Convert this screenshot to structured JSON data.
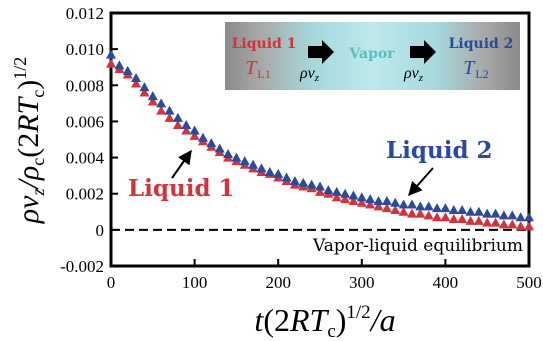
{
  "chart_data": {
    "type": "scatter",
    "xlim": [
      0,
      500
    ],
    "ylim": [
      -0.002,
      0.012
    ],
    "x_ticks": [
      "0",
      "100",
      "200",
      "300",
      "400",
      "500"
    ],
    "y_ticks": [
      "-0.002",
      "0",
      "0.002",
      "0.004",
      "0.006",
      "0.008",
      "0.010",
      "0.012"
    ],
    "x_tick_values": [
      0,
      100,
      200,
      300,
      400,
      500
    ],
    "y_tick_values": [
      -0.002,
      0,
      0.002,
      0.004,
      0.006,
      0.008,
      0.01,
      0.012
    ],
    "reference_line": {
      "y": 0,
      "style": "dashed",
      "label": "Vapor-liquid equilibrium"
    },
    "series": [
      {
        "name": "Liquid 1",
        "marker": "triangle",
        "color": "#d0343c",
        "x": [
          0,
          10,
          20,
          30,
          40,
          50,
          60,
          70,
          80,
          90,
          100,
          110,
          120,
          130,
          140,
          150,
          160,
          170,
          180,
          190,
          200,
          210,
          220,
          230,
          240,
          250,
          260,
          270,
          280,
          290,
          300,
          310,
          320,
          330,
          340,
          350,
          360,
          370,
          380,
          390,
          400,
          410,
          420,
          430,
          440,
          450,
          460,
          470,
          480,
          490,
          500
        ],
        "y": [
          0.0092,
          0.0089,
          0.0086,
          0.0081,
          0.0076,
          0.0071,
          0.0066,
          0.0062,
          0.0058,
          0.0055,
          0.0052,
          0.0049,
          0.0046,
          0.0043,
          0.004,
          0.0038,
          0.0036,
          0.0034,
          0.0032,
          0.0031,
          0.0029,
          0.0027,
          0.0025,
          0.0024,
          0.0023,
          0.0021,
          0.002,
          0.0018,
          0.0017,
          0.0016,
          0.0015,
          0.0014,
          0.0013,
          0.0012,
          0.0011,
          0.001,
          0.0009,
          0.0009,
          0.0008,
          0.0007,
          0.0007,
          0.0006,
          0.0006,
          0.0005,
          0.0005,
          0.0004,
          0.0004,
          0.0003,
          0.0003,
          0.0002,
          0.0002
        ]
      },
      {
        "name": "Liquid 2",
        "marker": "triangle",
        "color": "#2a4a9e",
        "x": [
          0,
          10,
          20,
          30,
          40,
          50,
          60,
          70,
          80,
          90,
          100,
          110,
          120,
          130,
          140,
          150,
          160,
          170,
          180,
          190,
          200,
          210,
          220,
          230,
          240,
          250,
          260,
          270,
          280,
          290,
          300,
          310,
          320,
          330,
          340,
          350,
          360,
          370,
          380,
          390,
          400,
          410,
          420,
          430,
          440,
          450,
          460,
          470,
          480,
          490,
          500
        ],
        "y": [
          0.0097,
          0.0091,
          0.0088,
          0.0084,
          0.0079,
          0.0074,
          0.007,
          0.0066,
          0.0062,
          0.0058,
          0.0055,
          0.0051,
          0.0048,
          0.0045,
          0.0042,
          0.004,
          0.0038,
          0.0036,
          0.0034,
          0.0032,
          0.0031,
          0.0029,
          0.0027,
          0.0026,
          0.0025,
          0.0024,
          0.0022,
          0.0021,
          0.002,
          0.0019,
          0.0018,
          0.0017,
          0.0016,
          0.0016,
          0.0015,
          0.0014,
          0.0014,
          0.0013,
          0.0013,
          0.0012,
          0.0012,
          0.0011,
          0.0011,
          0.001,
          0.001,
          0.0009,
          0.0009,
          0.0008,
          0.0008,
          0.0007,
          0.0007
        ]
      }
    ],
    "annotations": {
      "liquid1_label": "Liquid 1",
      "liquid2_label": "Liquid 2"
    },
    "inset": {
      "liquid1": "Liquid 1",
      "vapor": "Vapor",
      "liquid2": "Liquid 2",
      "T1": "T",
      "T1_sub": "L1",
      "T2": "T",
      "T2_sub": "L2",
      "flux1": "ρv",
      "flux1_sub": "z",
      "flux2": "ρv",
      "flux2_sub": "z"
    },
    "colors": {
      "liquid1": "#d0343c",
      "liquid2": "#2a4a9e",
      "vapor": "#7ec8c8"
    }
  }
}
